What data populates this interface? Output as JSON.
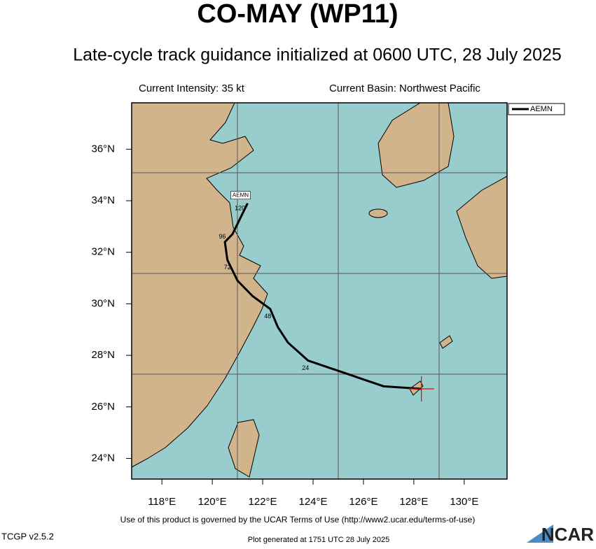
{
  "title": "CO-MAY (WP11)",
  "subtitle": "Late-cycle track guidance initialized at 0600 UTC, 28 July 2025",
  "intensity": "Current Intensity: 35 kt",
  "basin": "Current Basin: Northwest Pacific",
  "map": {
    "lonlim": [
      116.8,
      131.7
    ],
    "latlim": [
      23.2,
      37.8
    ],
    "lon_ticks": [
      {
        "value": 118,
        "label": "118°E"
      },
      {
        "value": 120,
        "label": "120°E"
      },
      {
        "value": 122,
        "label": "122°E"
      },
      {
        "value": 124,
        "label": "124°E"
      },
      {
        "value": 126,
        "label": "126°E"
      },
      {
        "value": 128,
        "label": "128°E"
      },
      {
        "value": 130,
        "label": "130°E"
      }
    ],
    "lat_ticks": [
      {
        "value": 24,
        "label": "24°N"
      },
      {
        "value": 26,
        "label": "26°N"
      },
      {
        "value": 28,
        "label": "28°N"
      },
      {
        "value": 30,
        "label": "30°N"
      },
      {
        "value": 32,
        "label": "32°N"
      },
      {
        "value": 34,
        "label": "34°N"
      },
      {
        "value": 36,
        "label": "36°N"
      }
    ],
    "current_position": {
      "lon": 128.3,
      "lat": 26.7
    },
    "track": {
      "name": "AEMN",
      "color": "#000000",
      "lon": [
        128.3,
        126.8,
        125.6,
        123.8,
        123.0,
        122.6,
        122.3,
        121.6,
        121.0,
        120.6,
        120.5,
        120.8,
        121.4
      ],
      "lat": [
        26.7,
        26.8,
        27.2,
        27.8,
        28.5,
        29.1,
        29.8,
        30.3,
        30.9,
        31.7,
        32.4,
        32.7,
        33.9
      ],
      "hour_labels": [
        {
          "hour": 24,
          "lon": 123.7,
          "lat": 27.5
        },
        {
          "hour": 48,
          "lon": 122.2,
          "lat": 29.5
        },
        {
          "hour": 72,
          "lon": 120.6,
          "lat": 31.4
        },
        {
          "hour": 96,
          "lon": 120.4,
          "lat": 32.6
        },
        {
          "hour": 120,
          "lon": 121.1,
          "lat": 33.7
        }
      ]
    }
  },
  "footer": {
    "terms": "Use of this product is governed by the UCAR Terms of Use (http://www2.ucar.edu/terms-of-use)",
    "version": "TCGP v2.5.2",
    "generated": "Plot generated at 1751 UTC  28 July 2025",
    "logo": "NCAR"
  }
}
